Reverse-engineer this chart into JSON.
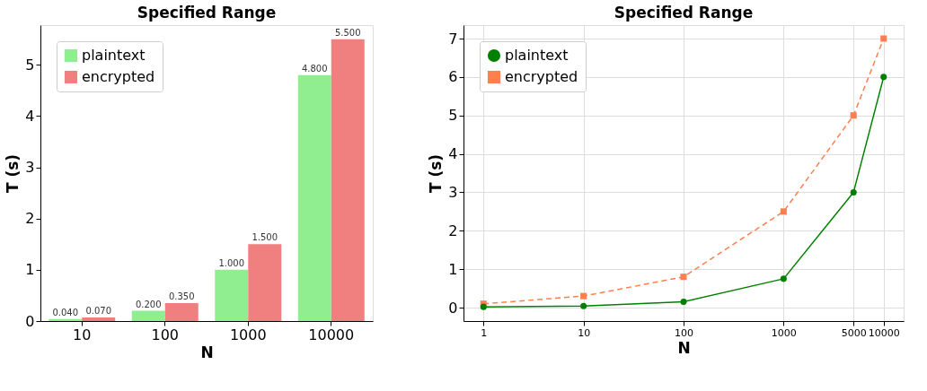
{
  "chart_data": [
    {
      "type": "bar",
      "title": "Specified Range",
      "xlabel": "N",
      "ylabel": "T (s)",
      "categories": [
        "10",
        "100",
        "1000",
        "10000"
      ],
      "series": [
        {
          "name": "plaintext",
          "color": "#90ee90",
          "values": [
            0.04,
            0.2,
            1.0,
            4.8
          ],
          "value_labels": [
            "0.040",
            "0.200",
            "1.000",
            "4.800"
          ]
        },
        {
          "name": "encrypted",
          "color": "#f08080",
          "values": [
            0.07,
            0.35,
            1.5,
            5.5
          ],
          "value_labels": [
            "0.070",
            "0.350",
            "1.500",
            "5.500"
          ]
        }
      ],
      "ylim": [
        0,
        5.775
      ],
      "yticks": [
        0,
        1,
        2,
        3,
        4,
        5
      ],
      "legend": "top left"
    },
    {
      "type": "line",
      "title": "Specified Range",
      "xlabel": "N",
      "ylabel": "T (s)",
      "x": [
        1,
        10,
        100,
        1000,
        5000,
        10000
      ],
      "series": [
        {
          "name": "plaintext",
          "color": "#008000",
          "values": [
            0.02,
            0.04,
            0.15,
            0.75,
            3,
            6
          ],
          "marker": "circle",
          "line_style": "solid"
        },
        {
          "name": "encrypted",
          "color": "#ff7f50",
          "values": [
            0.1,
            0.3,
            0.8,
            2.5,
            5,
            7
          ],
          "marker": "square",
          "line_style": "dashed"
        }
      ],
      "log": "x",
      "xlim": [
        0.631,
        15849
      ],
      "xticks": [
        1,
        10,
        100,
        1000,
        5000,
        10000
      ],
      "ylim": [
        -0.35,
        7.35
      ],
      "yticks": [
        0,
        1,
        2,
        3,
        4,
        5,
        6,
        7
      ],
      "grid": true,
      "legend": "top left"
    }
  ]
}
